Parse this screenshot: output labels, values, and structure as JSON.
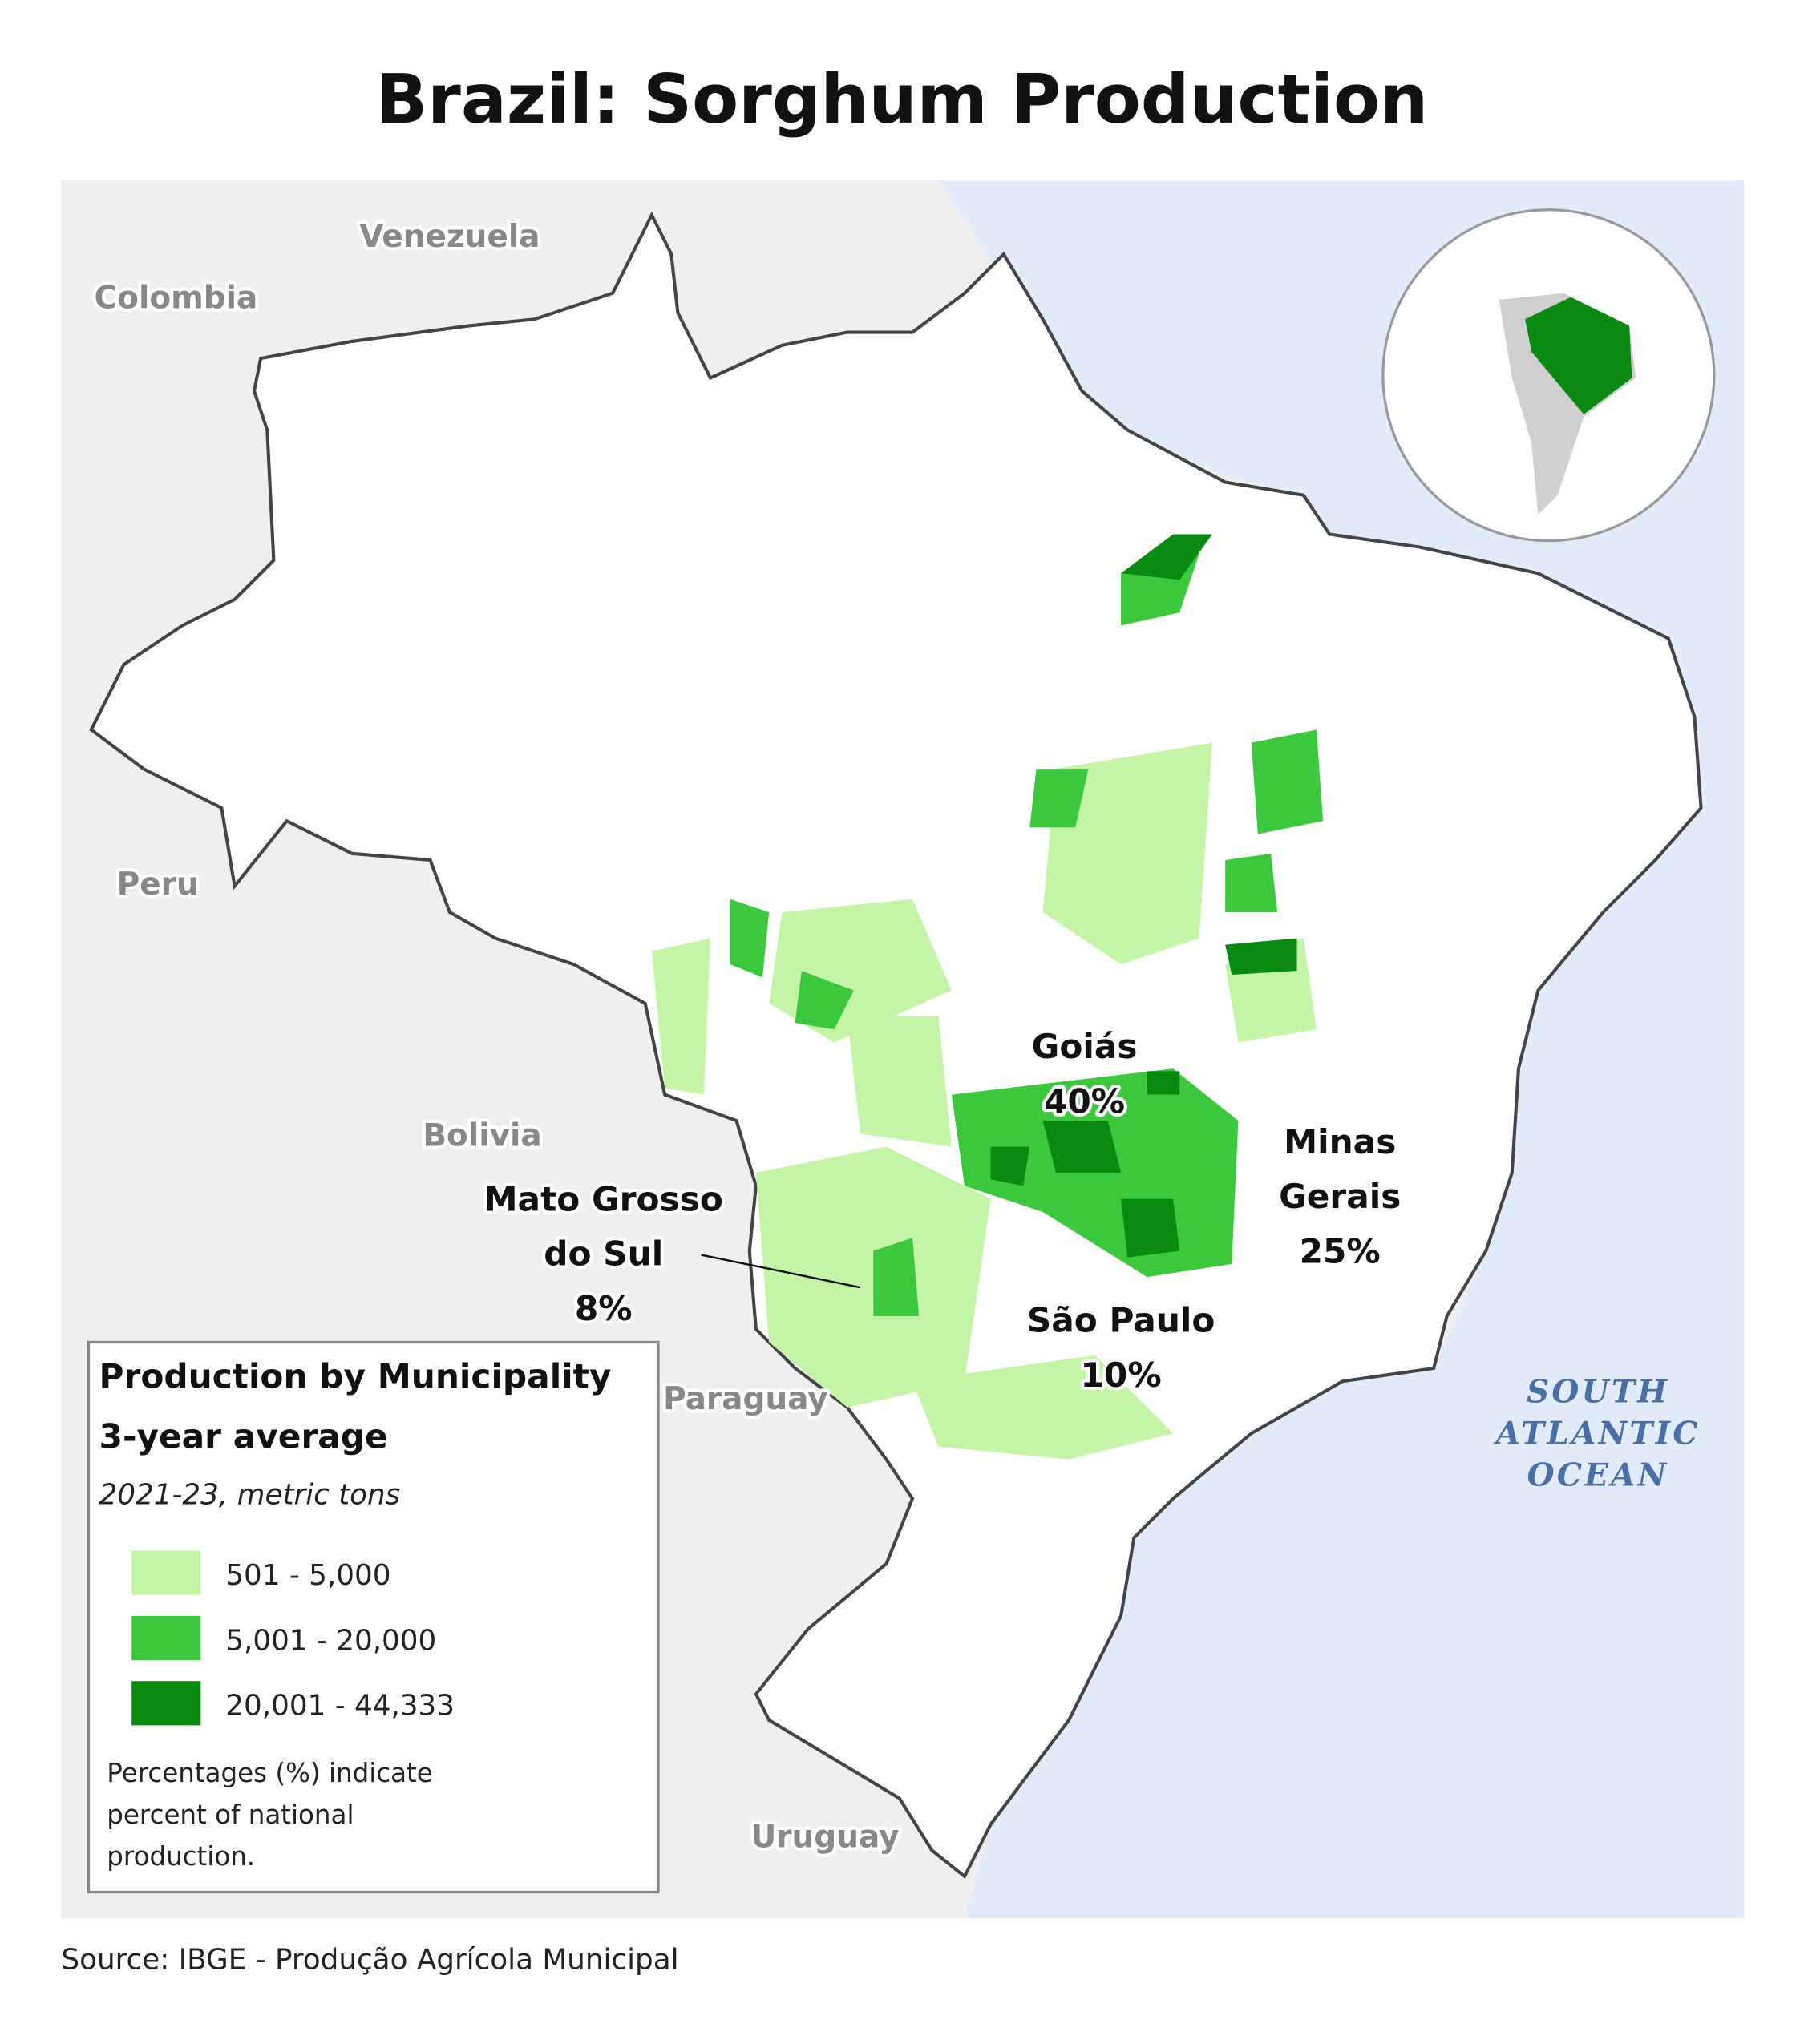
{
  "title": "Brazil: Sorghum Production",
  "countries": [
    "Venezuela",
    "Colombia",
    "Peru",
    "Bolivia",
    "Paraguay",
    "Uruguay"
  ],
  "regions": [
    {
      "name": [
        "Goiás"
      ],
      "share": "40%"
    },
    {
      "name": [
        "Minas",
        "Gerais"
      ],
      "share": "25%"
    },
    {
      "name": [
        "São Paulo"
      ],
      "share": "10%"
    },
    {
      "name": [
        "Mato Grosso",
        "do Sul"
      ],
      "share": "8%"
    }
  ],
  "ocean": [
    "SOUTH",
    "ATLANTIC",
    "OCEAN"
  ],
  "legend": {
    "title": [
      "Production by Municipality",
      "3-year average"
    ],
    "subtitle": "2021-23, metric tons",
    "items": [
      {
        "label": "501 - 5,000",
        "color": "#c4f5a6"
      },
      {
        "label": "5,001 - 20,000",
        "color": "#3cc83c"
      },
      {
        "label": "20,001 - 44,333",
        "color": "#0b8a12"
      }
    ],
    "note": [
      "Percentages (%) indicate",
      "percent of national",
      "production."
    ]
  },
  "source": "Source: IBGE - Produção Agrícola Municipal"
}
